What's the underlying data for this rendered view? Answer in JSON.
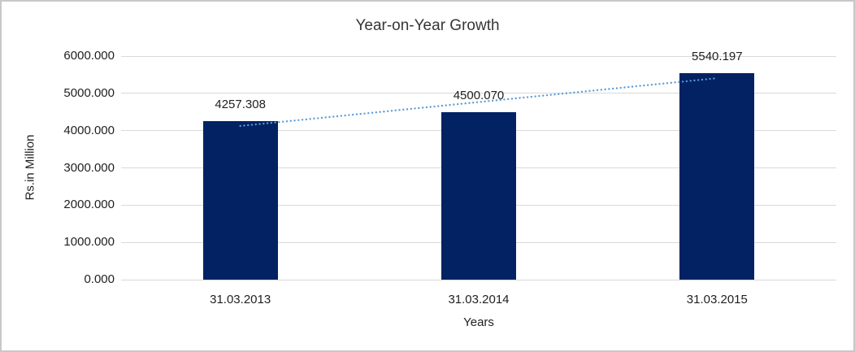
{
  "chart_data": {
    "type": "bar",
    "title": "Year-on-Year Growth",
    "xlabel": "Years",
    "ylabel": "Rs.in Million",
    "categories": [
      "31.03.2013",
      "31.03.2014",
      "31.03.2015"
    ],
    "values": [
      4257.308,
      4500.07,
      5540.197
    ],
    "data_labels": [
      "4257.308",
      "4500.070",
      "5540.197"
    ],
    "ylim": [
      0,
      6000
    ],
    "ytick_labels": [
      "0.000",
      "1000.000",
      "2000.000",
      "3000.000",
      "4000.000",
      "5000.000",
      "6000.000"
    ],
    "grid": true,
    "legend": "none",
    "trendline": {
      "type": "linear",
      "style": "dotted"
    },
    "colors": {
      "bar": "#022264",
      "trendline": "#5B9BD5",
      "gridline": "#D9D9D9",
      "text": "#1F1F1F",
      "title": "#363636",
      "frame": "#C8C8C8"
    }
  }
}
